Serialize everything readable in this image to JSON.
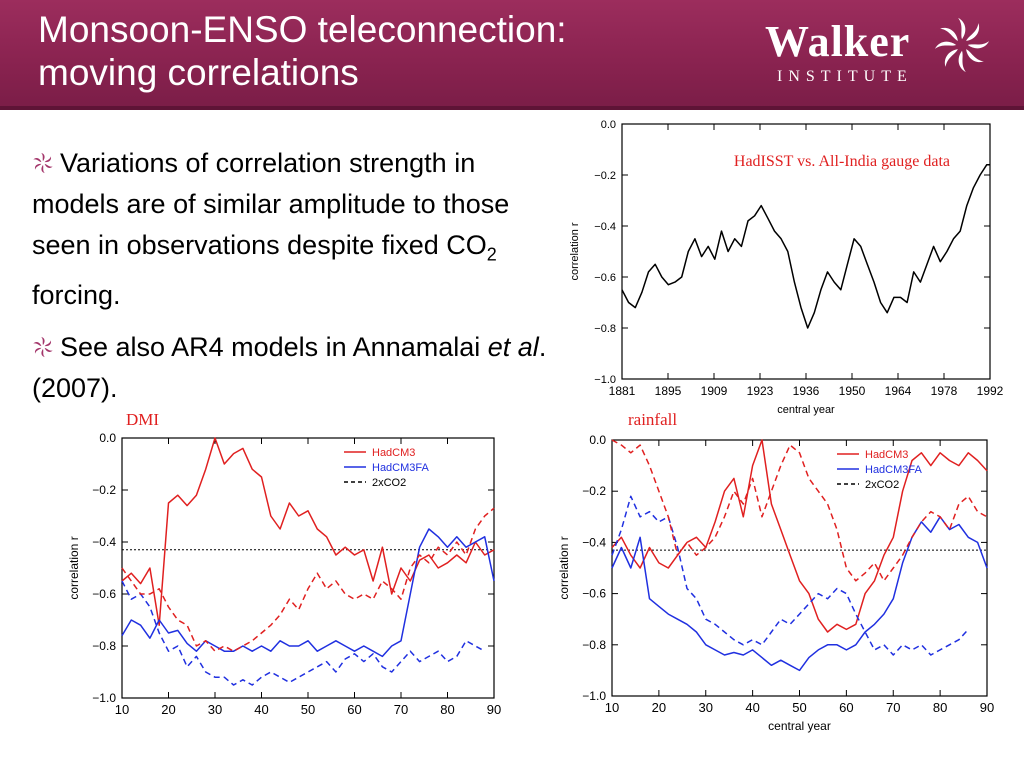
{
  "header": {
    "title_line1": "Monsoon-ENSO teleconnection:",
    "title_line2": "moving correlations",
    "logo_name": "Walker",
    "logo_sub": "INSTITUTE",
    "bg_color": "#8a2350"
  },
  "bullets": [
    {
      "pre": "Variations of correlation strength in models are of similar amplitude to those seen in observations despite fixed CO",
      "sub": "2",
      "post": " forcing."
    },
    {
      "pre": "See also AR4 models in Annamalai ",
      "italic": "et al",
      "post": ". (2007)."
    }
  ],
  "panel_labels": {
    "dmi": "DMI",
    "rainfall": "rainfall"
  },
  "chart_data": [
    {
      "type": "line",
      "annotation": "HadISST vs. All-India gauge data",
      "xlabel": "central year",
      "ylabel": "correlation r",
      "xlim": [
        1881,
        1992
      ],
      "ylim": [
        -1.0,
        0.0
      ],
      "xticks": [
        "1881",
        "1895",
        "1909",
        "1923",
        "1936",
        "1950",
        "1964",
        "1978",
        "1992"
      ],
      "yticks": [
        "0.0",
        "−0.2",
        "−0.4",
        "−0.6",
        "−0.8",
        "−1.0"
      ],
      "series": [
        {
          "color": "#000000",
          "dash": "solid",
          "x": [
            1881,
            1883,
            1885,
            1887,
            1889,
            1891,
            1893,
            1895,
            1897,
            1899,
            1901,
            1903,
            1905,
            1907,
            1909,
            1911,
            1913,
            1915,
            1917,
            1919,
            1921,
            1923,
            1925,
            1927,
            1929,
            1931,
            1933,
            1935,
            1937,
            1939,
            1941,
            1943,
            1945,
            1947,
            1949,
            1951,
            1953,
            1955,
            1957,
            1959,
            1961,
            1963,
            1965,
            1967,
            1969,
            1971,
            1973,
            1975,
            1977,
            1979,
            1981,
            1983,
            1985,
            1987,
            1989,
            1991,
            1992
          ],
          "y": [
            -0.65,
            -0.7,
            -0.72,
            -0.66,
            -0.58,
            -0.55,
            -0.6,
            -0.63,
            -0.62,
            -0.6,
            -0.5,
            -0.45,
            -0.52,
            -0.48,
            -0.53,
            -0.42,
            -0.5,
            -0.45,
            -0.48,
            -0.38,
            -0.36,
            -0.32,
            -0.37,
            -0.42,
            -0.45,
            -0.5,
            -0.62,
            -0.72,
            -0.8,
            -0.74,
            -0.65,
            -0.58,
            -0.62,
            -0.65,
            -0.55,
            -0.45,
            -0.48,
            -0.55,
            -0.62,
            -0.7,
            -0.74,
            -0.68,
            -0.68,
            -0.7,
            -0.58,
            -0.62,
            -0.55,
            -0.48,
            -0.54,
            -0.5,
            -0.45,
            -0.42,
            -0.32,
            -0.25,
            -0.2,
            -0.16,
            -0.16
          ]
        }
      ]
    },
    {
      "type": "line",
      "title": "DMI",
      "xlabel": "",
      "ylabel": "correlation r",
      "xlim": [
        10,
        90
      ],
      "ylim": [
        -1.0,
        0.0
      ],
      "xticks": [
        "10",
        "20",
        "30",
        "40",
        "50",
        "60",
        "70",
        "80",
        "90"
      ],
      "yticks": [
        "0.0",
        "−0.2",
        "−0.4",
        "−0.6",
        "−0.8",
        "−1.0"
      ],
      "hline": -0.43,
      "legend": [
        "HadCM3",
        "HadCM3FA",
        "2xCO2"
      ],
      "legend_position": "top-right",
      "series": [
        {
          "name": "HadCM3",
          "color": "#e02020",
          "dash": "solid",
          "x": [
            10,
            12,
            14,
            16,
            18,
            20,
            22,
            24,
            26,
            28,
            30,
            32,
            34,
            36,
            38,
            40,
            42,
            44,
            46,
            48,
            50,
            52,
            54,
            56,
            58,
            60,
            62,
            64,
            66,
            68,
            70,
            72,
            74,
            76,
            78,
            80,
            82,
            84,
            86,
            88,
            90
          ],
          "y": [
            -0.55,
            -0.52,
            -0.56,
            -0.5,
            -0.72,
            -0.25,
            -0.22,
            -0.26,
            -0.22,
            -0.12,
            0.0,
            -0.1,
            -0.06,
            -0.04,
            -0.12,
            -0.15,
            -0.3,
            -0.35,
            -0.25,
            -0.3,
            -0.28,
            -0.35,
            -0.38,
            -0.45,
            -0.42,
            -0.45,
            -0.43,
            -0.55,
            -0.42,
            -0.6,
            -0.5,
            -0.55,
            -0.47,
            -0.45,
            -0.5,
            -0.48,
            -0.45,
            -0.48,
            -0.4,
            -0.45,
            -0.43
          ]
        },
        {
          "name": "HadCM3FA",
          "color": "#2030e0",
          "dash": "solid",
          "x": [
            10,
            12,
            14,
            16,
            18,
            20,
            22,
            24,
            26,
            28,
            30,
            32,
            34,
            36,
            38,
            40,
            42,
            44,
            46,
            48,
            50,
            52,
            54,
            56,
            58,
            60,
            62,
            64,
            66,
            68,
            70,
            72,
            74,
            76,
            78,
            80,
            82,
            84,
            86,
            88,
            90
          ],
          "y": [
            -0.76,
            -0.7,
            -0.72,
            -0.77,
            -0.7,
            -0.75,
            -0.74,
            -0.79,
            -0.82,
            -0.78,
            -0.8,
            -0.82,
            -0.82,
            -0.8,
            -0.82,
            -0.8,
            -0.82,
            -0.78,
            -0.8,
            -0.8,
            -0.78,
            -0.82,
            -0.8,
            -0.78,
            -0.8,
            -0.82,
            -0.8,
            -0.82,
            -0.84,
            -0.8,
            -0.78,
            -0.6,
            -0.42,
            -0.35,
            -0.38,
            -0.42,
            -0.38,
            -0.42,
            -0.4,
            -0.38,
            -0.55
          ]
        },
        {
          "name": "2xCO2",
          "color": "#2030e0",
          "dash": "dashed",
          "x": [
            10,
            12,
            14,
            16,
            18,
            20,
            22,
            24,
            26,
            28,
            30,
            32,
            34,
            36,
            38,
            40,
            42,
            44,
            46,
            48,
            50,
            52,
            54,
            56,
            58,
            60,
            62,
            64,
            66,
            68,
            70,
            72,
            74,
            76,
            78,
            80,
            82,
            84,
            86,
            88
          ],
          "y": [
            -0.55,
            -0.62,
            -0.6,
            -0.65,
            -0.75,
            -0.82,
            -0.8,
            -0.88,
            -0.84,
            -0.9,
            -0.92,
            -0.92,
            -0.95,
            -0.93,
            -0.95,
            -0.92,
            -0.9,
            -0.92,
            -0.94,
            -0.92,
            -0.9,
            -0.88,
            -0.86,
            -0.9,
            -0.85,
            -0.83,
            -0.86,
            -0.83,
            -0.88,
            -0.9,
            -0.86,
            -0.82,
            -0.86,
            -0.84,
            -0.82,
            -0.86,
            -0.84,
            -0.78,
            -0.8,
            -0.82
          ]
        },
        {
          "name": "HadCM3 2xCO2",
          "color": "#e02020",
          "dash": "dashed",
          "x": [
            10,
            12,
            14,
            16,
            18,
            20,
            22,
            24,
            26,
            28,
            30,
            32,
            34,
            36,
            38,
            40,
            42,
            44,
            46,
            48,
            50,
            52,
            54,
            56,
            58,
            60,
            62,
            64,
            66,
            68,
            70,
            72,
            74,
            76,
            78,
            80,
            82,
            84,
            86,
            88,
            90
          ],
          "y": [
            -0.5,
            -0.55,
            -0.6,
            -0.6,
            -0.58,
            -0.65,
            -0.7,
            -0.72,
            -0.8,
            -0.78,
            -0.82,
            -0.8,
            -0.82,
            -0.8,
            -0.78,
            -0.75,
            -0.72,
            -0.68,
            -0.62,
            -0.66,
            -0.58,
            -0.52,
            -0.58,
            -0.55,
            -0.6,
            -0.62,
            -0.6,
            -0.62,
            -0.55,
            -0.58,
            -0.62,
            -0.5,
            -0.45,
            -0.48,
            -0.42,
            -0.45,
            -0.4,
            -0.45,
            -0.35,
            -0.3,
            -0.27
          ]
        }
      ]
    },
    {
      "type": "line",
      "title": "rainfall",
      "xlabel": "central year",
      "ylabel": "correlation r",
      "xlim": [
        10,
        90
      ],
      "ylim": [
        -1.0,
        0.0
      ],
      "xticks": [
        "10",
        "20",
        "30",
        "40",
        "50",
        "60",
        "70",
        "80",
        "90"
      ],
      "yticks": [
        "0.0",
        "−0.2",
        "−0.4",
        "−0.6",
        "−0.8",
        "−1.0"
      ],
      "hline": -0.43,
      "legend": [
        "HadCM3",
        "HadCM3FA",
        "2xCO2"
      ],
      "legend_position": "top-right",
      "series": [
        {
          "name": "HadCM3",
          "color": "#e02020",
          "dash": "solid",
          "x": [
            10,
            12,
            14,
            16,
            18,
            20,
            22,
            24,
            26,
            28,
            30,
            32,
            34,
            36,
            38,
            40,
            42,
            44,
            46,
            48,
            50,
            52,
            54,
            56,
            58,
            60,
            62,
            64,
            66,
            68,
            70,
            72,
            74,
            76,
            78,
            80,
            82,
            84,
            86,
            88,
            90
          ],
          "y": [
            -0.42,
            -0.38,
            -0.45,
            -0.5,
            -0.42,
            -0.48,
            -0.5,
            -0.45,
            -0.4,
            -0.38,
            -0.42,
            -0.32,
            -0.2,
            -0.15,
            -0.3,
            -0.1,
            0.0,
            -0.25,
            -0.35,
            -0.45,
            -0.55,
            -0.6,
            -0.7,
            -0.75,
            -0.72,
            -0.74,
            -0.72,
            -0.6,
            -0.55,
            -0.45,
            -0.38,
            -0.2,
            -0.08,
            -0.05,
            -0.1,
            -0.05,
            -0.08,
            -0.1,
            -0.05,
            -0.08,
            -0.12
          ]
        },
        {
          "name": "HadCM3FA",
          "color": "#2030e0",
          "dash": "solid",
          "x": [
            10,
            12,
            14,
            16,
            18,
            20,
            22,
            24,
            26,
            28,
            30,
            32,
            34,
            36,
            38,
            40,
            42,
            44,
            46,
            48,
            50,
            52,
            54,
            56,
            58,
            60,
            62,
            64,
            66,
            68,
            70,
            72,
            74,
            76,
            78,
            80,
            82,
            84,
            86,
            88,
            90
          ],
          "y": [
            -0.5,
            -0.42,
            -0.5,
            -0.38,
            -0.62,
            -0.65,
            -0.68,
            -0.7,
            -0.72,
            -0.75,
            -0.8,
            -0.82,
            -0.84,
            -0.83,
            -0.84,
            -0.82,
            -0.85,
            -0.88,
            -0.86,
            -0.88,
            -0.9,
            -0.85,
            -0.82,
            -0.8,
            -0.8,
            -0.82,
            -0.8,
            -0.75,
            -0.72,
            -0.68,
            -0.62,
            -0.48,
            -0.38,
            -0.32,
            -0.36,
            -0.3,
            -0.35,
            -0.33,
            -0.38,
            -0.4,
            -0.5
          ]
        },
        {
          "name": "2xCO2",
          "color": "#2030e0",
          "dash": "dashed",
          "x": [
            10,
            12,
            14,
            16,
            18,
            20,
            22,
            24,
            26,
            28,
            30,
            32,
            34,
            36,
            38,
            40,
            42,
            44,
            46,
            48,
            50,
            52,
            54,
            56,
            58,
            60,
            62,
            64,
            66,
            68,
            70,
            72,
            74,
            76,
            78,
            80,
            82,
            84,
            86
          ],
          "y": [
            -0.45,
            -0.35,
            -0.22,
            -0.3,
            -0.28,
            -0.32,
            -0.3,
            -0.42,
            -0.58,
            -0.62,
            -0.7,
            -0.72,
            -0.75,
            -0.78,
            -0.8,
            -0.78,
            -0.8,
            -0.75,
            -0.7,
            -0.72,
            -0.68,
            -0.64,
            -0.6,
            -0.62,
            -0.58,
            -0.6,
            -0.68,
            -0.75,
            -0.82,
            -0.8,
            -0.84,
            -0.8,
            -0.82,
            -0.8,
            -0.84,
            -0.82,
            -0.8,
            -0.78,
            -0.74
          ]
        },
        {
          "name": "HadCM3 2xCO2",
          "color": "#e02020",
          "dash": "dashed",
          "x": [
            10,
            12,
            14,
            16,
            18,
            20,
            22,
            24,
            26,
            28,
            30,
            32,
            34,
            36,
            38,
            40,
            42,
            44,
            46,
            48,
            50,
            52,
            54,
            56,
            58,
            60,
            62,
            64,
            66,
            68,
            70,
            72,
            74,
            76,
            78,
            80,
            82,
            84,
            86,
            88,
            90
          ],
          "y": [
            0.0,
            -0.02,
            -0.05,
            -0.02,
            -0.1,
            -0.2,
            -0.3,
            -0.45,
            -0.4,
            -0.45,
            -0.42,
            -0.38,
            -0.3,
            -0.2,
            -0.25,
            -0.15,
            -0.3,
            -0.2,
            -0.1,
            -0.02,
            -0.05,
            -0.15,
            -0.2,
            -0.25,
            -0.35,
            -0.5,
            -0.55,
            -0.52,
            -0.48,
            -0.55,
            -0.5,
            -0.45,
            -0.38,
            -0.32,
            -0.28,
            -0.3,
            -0.35,
            -0.25,
            -0.22,
            -0.28,
            -0.3
          ]
        }
      ]
    }
  ]
}
